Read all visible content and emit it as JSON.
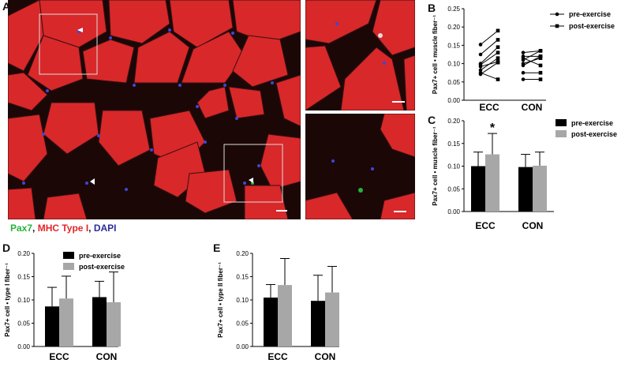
{
  "figure": {
    "panels": {
      "a": "A",
      "b": "B",
      "c": "C",
      "d": "D",
      "e": "E"
    },
    "stain_legend": {
      "pax7": "Pax7",
      "sep1": ", ",
      "mhc": "MHC Type I",
      "sep2": ", ",
      "dapi": "DAPI"
    },
    "colors": {
      "pax7": "#27b33a",
      "mhc": "#e3262a",
      "dapi": "#2b2c9b",
      "muscle": "#d8282a",
      "bar_pre": "#000000",
      "bar_post": "#a7a7a7"
    }
  },
  "chart_data": [
    {
      "id": "B",
      "type": "line",
      "ylabel": "Pax7+ cell • muscle fiber⁻¹",
      "ylim": [
        0,
        0.25
      ],
      "yticks": [
        "0.00",
        "0.05",
        "0.10",
        "0.15",
        "0.20",
        "0.25"
      ],
      "categories": [
        "ECC",
        "CON"
      ],
      "legend": [
        "pre-exercise",
        "post-exercise"
      ],
      "pairs": {
        "ECC": [
          [
            0.152,
            0.19
          ],
          [
            0.125,
            0.165
          ],
          [
            0.1,
            0.145
          ],
          [
            0.097,
            0.13
          ],
          [
            0.092,
            0.105
          ],
          [
            0.082,
            0.115
          ],
          [
            0.075,
            0.057
          ],
          [
            0.071,
            0.103
          ]
        ],
        "CON": [
          [
            0.13,
            0.135
          ],
          [
            0.12,
            0.12
          ],
          [
            0.115,
            0.095
          ],
          [
            0.11,
            0.135
          ],
          [
            0.1,
            0.115
          ],
          [
            0.095,
            0.12
          ],
          [
            0.075,
            0.075
          ],
          [
            0.057,
            0.057
          ]
        ]
      }
    },
    {
      "id": "C",
      "type": "bar",
      "ylabel": "Pax7+ cell • muscle fiber⁻¹",
      "ylim": [
        0,
        0.2
      ],
      "yticks": [
        "0.00",
        "0.05",
        "0.10",
        "0.15",
        "0.20"
      ],
      "categories": [
        "ECC",
        "CON"
      ],
      "series": [
        {
          "name": "pre-exercise",
          "values": [
            0.1,
            0.098
          ],
          "err": [
            0.031,
            0.028
          ]
        },
        {
          "name": "post-exercise",
          "values": [
            0.126,
            0.101
          ],
          "err": [
            0.046,
            0.03
          ]
        }
      ],
      "annotation": "*"
    },
    {
      "id": "D",
      "type": "bar",
      "ylabel": "Pax7+ cell • type I fiber⁻¹",
      "ylim": [
        0,
        0.2
      ],
      "yticks": [
        "0.00",
        "0.05",
        "0.10",
        "0.15",
        "0.20"
      ],
      "categories": [
        "ECC",
        "CON"
      ],
      "series": [
        {
          "name": "pre-exercise",
          "values": [
            0.086,
            0.106
          ],
          "err": [
            0.041,
            0.034
          ]
        },
        {
          "name": "post-exercise",
          "values": [
            0.103,
            0.095
          ],
          "err": [
            0.048,
            0.065
          ]
        }
      ]
    },
    {
      "id": "E",
      "type": "bar",
      "ylabel": "Pax7+ cell • type II fiber⁻¹",
      "ylim": [
        0,
        0.2
      ],
      "yticks": [
        "0.00",
        "0.05",
        "0.10",
        "0.15",
        "0.20"
      ],
      "categories": [
        "ECC",
        "CON"
      ],
      "series": [
        {
          "name": "pre-exercise",
          "values": [
            0.105,
            0.098
          ],
          "err": [
            0.028,
            0.055
          ]
        },
        {
          "name": "post-exercise",
          "values": [
            0.132,
            0.116
          ],
          "err": [
            0.057,
            0.056
          ]
        }
      ]
    }
  ]
}
